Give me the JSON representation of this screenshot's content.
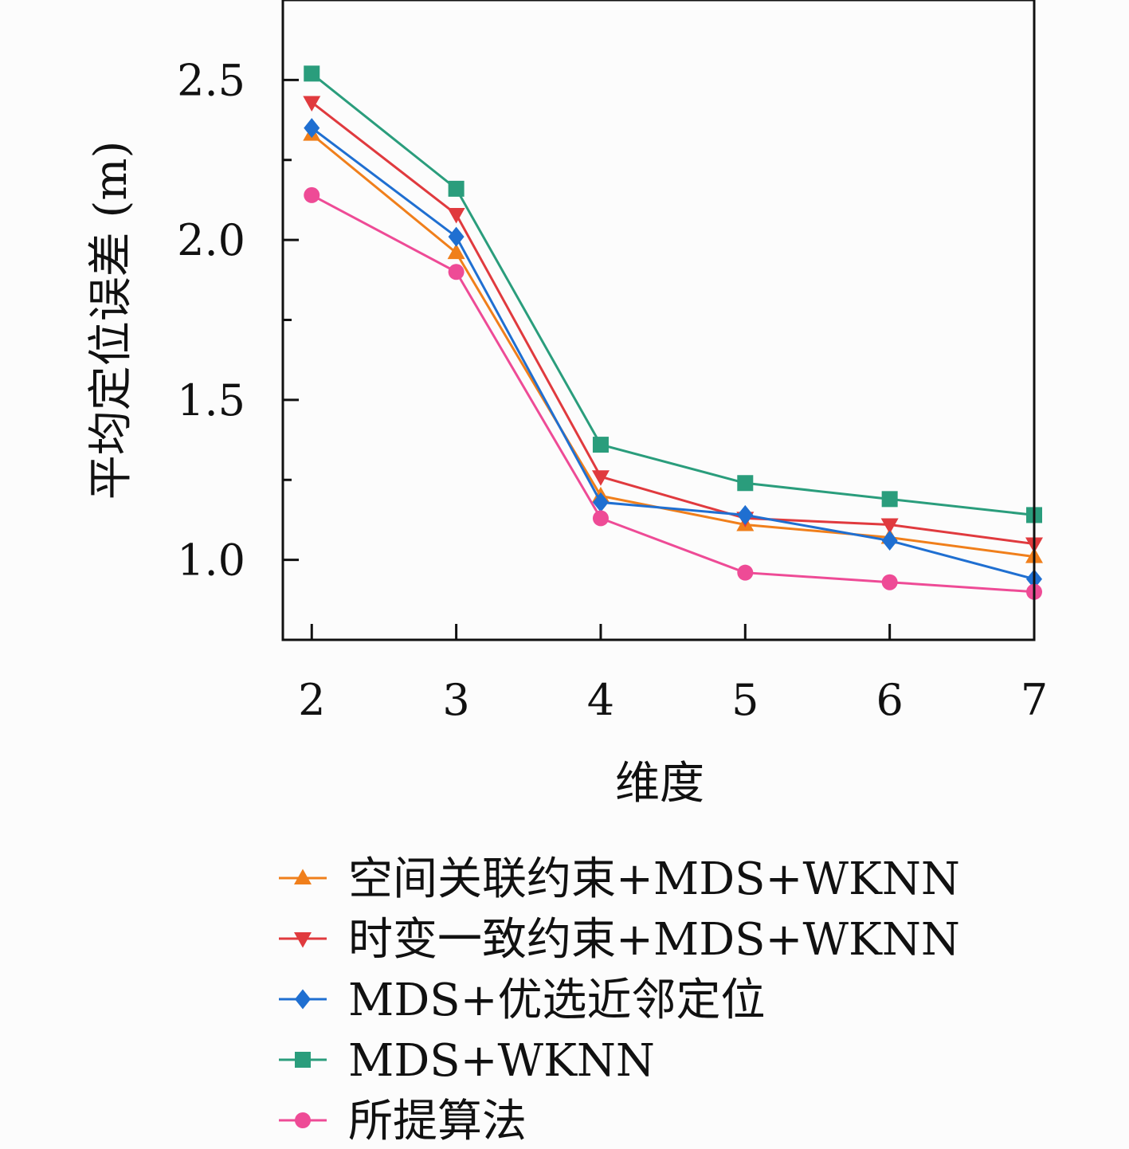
{
  "chart_data": {
    "type": "line",
    "title": "",
    "xlabel": "维度",
    "ylabel": "平均定位误差 (m)",
    "x": [
      2,
      3,
      4,
      5,
      6,
      7
    ],
    "xlim": [
      1.8,
      7
    ],
    "ylim": [
      0.75,
      2.75
    ],
    "x_ticks": [
      "2",
      "3",
      "4",
      "5",
      "6",
      "7"
    ],
    "y_ticks": [
      "1.0",
      "1.5",
      "2.0",
      "2.5"
    ],
    "grid": false,
    "legend_position": "bottom",
    "series": [
      {
        "name": "空间关联约束+MDS+WKNN",
        "color": "#f07f1b",
        "marker": "triangle-up",
        "values": [
          2.33,
          1.96,
          1.2,
          1.11,
          1.07,
          1.01
        ]
      },
      {
        "name": "时变一致约束+MDS+WKNN",
        "color": "#e03a3e",
        "marker": "triangle-down",
        "values": [
          2.43,
          2.08,
          1.26,
          1.13,
          1.11,
          1.05
        ]
      },
      {
        "name": "MDS+优选近邻定位",
        "color": "#1f6fd1",
        "marker": "diamond",
        "values": [
          2.35,
          2.01,
          1.18,
          1.14,
          1.06,
          0.94
        ]
      },
      {
        "name": "MDS+WKNN",
        "color": "#2a9d7c",
        "marker": "square",
        "values": [
          2.52,
          2.16,
          1.36,
          1.24,
          1.19,
          1.14
        ]
      },
      {
        "name": "所提算法",
        "color": "#ee4b96",
        "marker": "circle",
        "values": [
          2.14,
          1.9,
          1.13,
          0.96,
          0.93,
          0.9
        ]
      }
    ]
  }
}
